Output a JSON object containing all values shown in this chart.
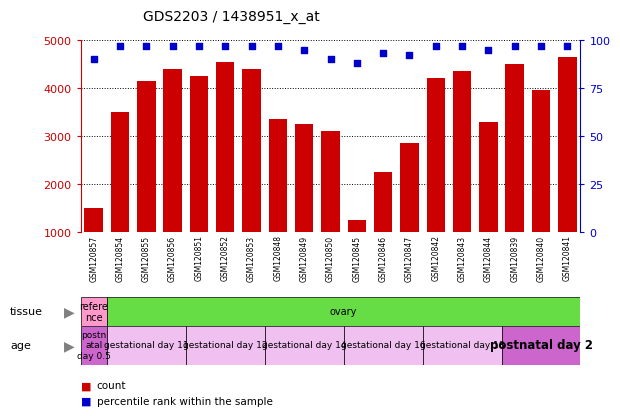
{
  "title": "GDS2203 / 1438951_x_at",
  "samples": [
    "GSM120857",
    "GSM120854",
    "GSM120855",
    "GSM120856",
    "GSM120851",
    "GSM120852",
    "GSM120853",
    "GSM120848",
    "GSM120849",
    "GSM120850",
    "GSM120845",
    "GSM120846",
    "GSM120847",
    "GSM120842",
    "GSM120843",
    "GSM120844",
    "GSM120839",
    "GSM120840",
    "GSM120841"
  ],
  "counts": [
    1500,
    3500,
    4150,
    4400,
    4250,
    4550,
    4400,
    3350,
    3250,
    3100,
    1250,
    2250,
    2850,
    4200,
    4350,
    3300,
    4500,
    3950,
    4650
  ],
  "percentiles": [
    90,
    97,
    97,
    97,
    97,
    97,
    97,
    97,
    95,
    90,
    88,
    93,
    92,
    97,
    97,
    95,
    97,
    97,
    97
  ],
  "bar_color": "#cc0000",
  "dot_color": "#0000cc",
  "ylim_left": [
    1000,
    5000
  ],
  "ylim_right": [
    0,
    100
  ],
  "yticks_left": [
    1000,
    2000,
    3000,
    4000,
    5000
  ],
  "yticks_right": [
    0,
    25,
    50,
    75,
    100
  ],
  "tissue_labels": [
    {
      "text": "refere\nnce",
      "start": 0,
      "end": 1,
      "color": "#ff99cc"
    },
    {
      "text": "ovary",
      "start": 1,
      "end": 19,
      "color": "#66dd44"
    }
  ],
  "age_labels": [
    {
      "text": "postn\natal\nday 0.5",
      "start": 0,
      "end": 1,
      "color": "#cc66cc"
    },
    {
      "text": "gestational day 11",
      "start": 1,
      "end": 4,
      "color": "#f0c0f0"
    },
    {
      "text": "gestational day 12",
      "start": 4,
      "end": 7,
      "color": "#f0c0f0"
    },
    {
      "text": "gestational day 14",
      "start": 7,
      "end": 10,
      "color": "#f0c0f0"
    },
    {
      "text": "gestational day 16",
      "start": 10,
      "end": 13,
      "color": "#f0c0f0"
    },
    {
      "text": "gestational day 18",
      "start": 13,
      "end": 16,
      "color": "#f0c0f0"
    },
    {
      "text": "postnatal day 2",
      "start": 16,
      "end": 19,
      "color": "#cc66cc"
    }
  ],
  "tissue_row_label": "tissue",
  "age_row_label": "age",
  "legend_count_color": "#cc0000",
  "legend_dot_color": "#0000cc",
  "axis_color_left": "#cc0000",
  "axis_color_right": "#0000cc",
  "background_color": "#ffffff"
}
